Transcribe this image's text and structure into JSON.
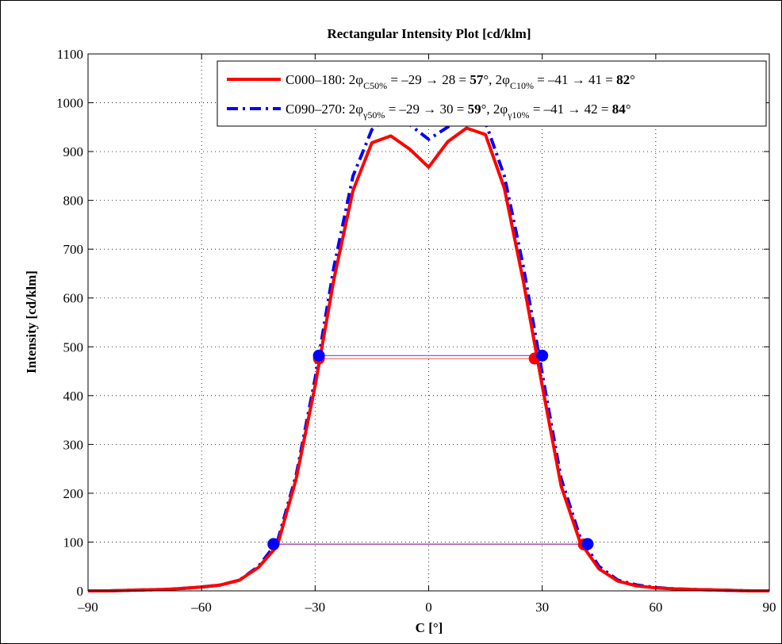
{
  "chart_data": {
    "type": "line",
    "title": "Rectangular Intensity Plot [cd/klm]",
    "xlabel": "C [°]",
    "ylabel": "Intensity [cd/klm]",
    "xlim": [
      -90,
      90
    ],
    "ylim": [
      0,
      1100
    ],
    "xticks": [
      -90,
      -60,
      -30,
      0,
      30,
      60,
      90
    ],
    "yticks": [
      0,
      100,
      200,
      300,
      400,
      500,
      600,
      700,
      800,
      900,
      1000,
      1100
    ],
    "xtick_labels": [
      "–90",
      "–60",
      "–30",
      "0",
      "30",
      "60",
      "90"
    ],
    "ytick_labels": [
      "0",
      "100",
      "200",
      "300",
      "400",
      "500",
      "600",
      "700",
      "800",
      "900",
      "1000",
      "1100"
    ],
    "grid": true,
    "legend_position": "top-right",
    "series": [
      {
        "name": "C000–180",
        "color": "#ff0000",
        "dash": "solid",
        "x": [
          -90,
          -85,
          -80,
          -75,
          -70,
          -65,
          -60,
          -55,
          -50,
          -45,
          -40,
          -35,
          -30,
          -25,
          -20,
          -15,
          -10,
          -5,
          0,
          5,
          10,
          15,
          20,
          25,
          30,
          35,
          40,
          45,
          50,
          55,
          60,
          65,
          70,
          75,
          80,
          85,
          90
        ],
        "y": [
          0,
          0,
          1,
          2,
          3,
          5,
          8,
          12,
          22,
          48,
          92,
          230,
          420,
          640,
          820,
          918,
          932,
          905,
          868,
          920,
          948,
          935,
          825,
          635,
          420,
          215,
          100,
          45,
          20,
          10,
          6,
          4,
          3,
          2,
          1,
          0,
          0
        ],
        "markers": {
          "x": [
            -29,
            28,
            -41,
            41
          ],
          "y": [
            476,
            476,
            95,
            95
          ]
        }
      },
      {
        "name": "C090–270",
        "color": "#0000ff",
        "dash": "dash-dot",
        "x": [
          -90,
          -85,
          -80,
          -75,
          -70,
          -65,
          -60,
          -55,
          -50,
          -45,
          -40,
          -35,
          -30,
          -25,
          -20,
          -15,
          -10,
          -5,
          0,
          5,
          10,
          15,
          20,
          25,
          30,
          35,
          40,
          45,
          50,
          55,
          60,
          65,
          70,
          75,
          80,
          85,
          90
        ],
        "y": [
          0,
          0,
          1,
          2,
          3,
          5,
          8,
          12,
          22,
          50,
          100,
          238,
          435,
          665,
          850,
          945,
          975,
          955,
          925,
          950,
          975,
          960,
          850,
          665,
          445,
          230,
          110,
          50,
          22,
          12,
          7,
          4,
          3,
          2,
          1,
          0,
          0
        ],
        "markers": {
          "x": [
            -29,
            30,
            -41,
            42
          ],
          "y": [
            482,
            482,
            96,
            96
          ]
        }
      }
    ],
    "hlines": [
      {
        "y": 476,
        "x": [
          -29,
          28
        ],
        "color": "#ff6666"
      },
      {
        "y": 482,
        "x": [
          -29,
          30
        ],
        "color": "#6666ff"
      },
      {
        "y": 95,
        "x": [
          -41,
          41
        ],
        "color": "#ff6666"
      },
      {
        "y": 96,
        "x": [
          -41,
          42
        ],
        "color": "#6666ff"
      }
    ],
    "legend": [
      {
        "series": "C000–180",
        "pre": "C000–180: 2φ",
        "sub1": "C50%",
        "mid1": " = –29 → 28 = ",
        "bold1": "57",
        "mid2": "°, 2φ",
        "sub2": "C10%",
        "mid3": " = –41 → 41 = ",
        "bold2": "82",
        "post": "°"
      },
      {
        "series": "C090–270",
        "pre": "C090–270: 2φ",
        "sub1": "γ50%",
        "mid1": " = –29 → 30 = ",
        "bold1": "59",
        "mid2": "°, 2φ",
        "sub2": "γ10%",
        "mid3": " = –41 → 42 = ",
        "bold2": "84",
        "post": "°"
      }
    ]
  }
}
